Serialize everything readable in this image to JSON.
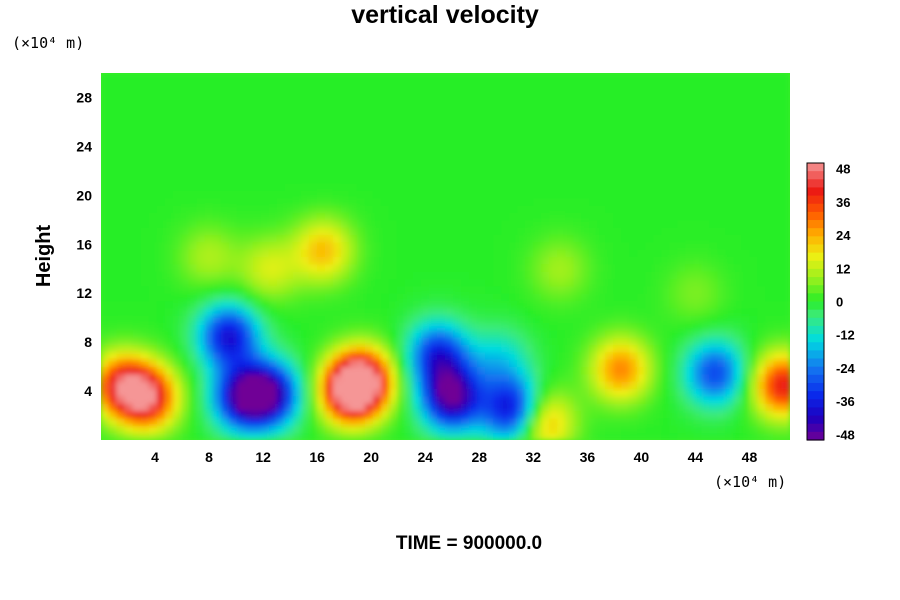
{
  "chart_data": {
    "type": "heatmap",
    "title": "vertical velocity",
    "ylabel": "Height",
    "xlabel": "",
    "x_unit_label": "(×10⁴ m)",
    "y_unit_label": "(×10⁴ m)",
    "xlim": [
      0,
      51
    ],
    "ylim": [
      0,
      30
    ],
    "x_ticks": [
      "4",
      "8",
      "12",
      "16",
      "20",
      "24",
      "28",
      "32",
      "36",
      "40",
      "44",
      "48"
    ],
    "x_tick_values": [
      4,
      8,
      12,
      16,
      20,
      24,
      28,
      32,
      36,
      40,
      44,
      48
    ],
    "y_ticks": [
      "4",
      "8",
      "12",
      "16",
      "20",
      "24",
      "28"
    ],
    "y_tick_values": [
      4,
      8,
      12,
      16,
      20,
      24,
      28
    ],
    "colorbar": {
      "ticks": [
        "48",
        "36",
        "24",
        "12",
        "0",
        "-12",
        "-24",
        "-36",
        "-48"
      ],
      "tick_values": [
        48,
        36,
        24,
        12,
        0,
        -12,
        -24,
        -36,
        -48
      ],
      "range": [
        -50,
        50
      ]
    },
    "features": [
      {
        "x": 1.5,
        "y": 4.5,
        "value": 36
      },
      {
        "x": 3.5,
        "y": 3.5,
        "value": 42
      },
      {
        "x": 10.5,
        "y": 3.5,
        "value": -40
      },
      {
        "x": 12.5,
        "y": 3.8,
        "value": -42
      },
      {
        "x": 9.5,
        "y": 8.5,
        "value": -38
      },
      {
        "x": 18.5,
        "y": 4.0,
        "value": 48
      },
      {
        "x": 19.5,
        "y": 5.0,
        "value": 38
      },
      {
        "x": 16.5,
        "y": 15.5,
        "value": 22
      },
      {
        "x": 12.5,
        "y": 14.0,
        "value": 14
      },
      {
        "x": 26.0,
        "y": 3.5,
        "value": -48
      },
      {
        "x": 25.0,
        "y": 7.0,
        "value": -34
      },
      {
        "x": 30.5,
        "y": 2.5,
        "value": -40
      },
      {
        "x": 29.5,
        "y": 6.5,
        "value": -14
      },
      {
        "x": 32.8,
        "y": 1.5,
        "value": 26
      },
      {
        "x": 38.5,
        "y": 5.8,
        "value": 28
      },
      {
        "x": 45.5,
        "y": 5.5,
        "value": -30
      },
      {
        "x": 50.5,
        "y": 4.5,
        "value": 40
      },
      {
        "x": 8.0,
        "y": 15.0,
        "value": 10
      },
      {
        "x": 34.0,
        "y": 14.0,
        "value": 9
      },
      {
        "x": 44.0,
        "y": 12.0,
        "value": 6
      }
    ]
  },
  "footer": {
    "time_label": "TIME = 900000.0"
  }
}
